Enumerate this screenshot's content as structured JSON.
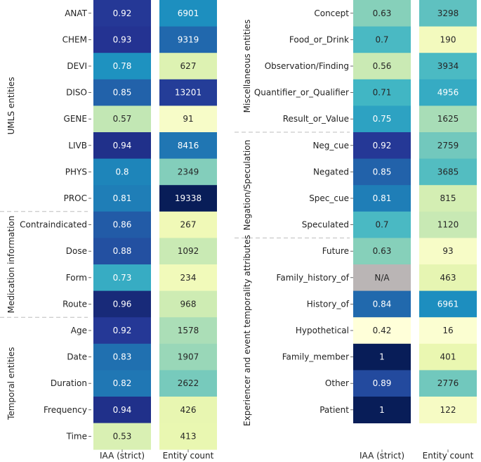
{
  "chart_data": {
    "type": "heatmap",
    "columns": [
      "IAA (strict)",
      "Entity count"
    ],
    "colormap": [
      "#ffffd9",
      "#edf8b1",
      "#c7e9b4",
      "#7fcdbb",
      "#41b6c4",
      "#1d91c0",
      "#225ea8",
      "#253494",
      "#081d58"
    ],
    "na_color": "#bab5b5",
    "panels": [
      {
        "groups": [
          {
            "label": "UMLS entities",
            "rows": [
              {
                "label": "ANAT",
                "iaa": 0.92,
                "iaa_text": "0.92",
                "count": 6901
              },
              {
                "label": "CHEM",
                "iaa": 0.93,
                "iaa_text": "0.93",
                "count": 9319
              },
              {
                "label": "DEVI",
                "iaa": 0.78,
                "iaa_text": "0.78",
                "count": 627
              },
              {
                "label": "DISO",
                "iaa": 0.85,
                "iaa_text": "0.85",
                "count": 13201
              },
              {
                "label": "GENE",
                "iaa": 0.57,
                "iaa_text": "0.57",
                "count": 91
              },
              {
                "label": "LIVB",
                "iaa": 0.94,
                "iaa_text": "0.94",
                "count": 8416
              },
              {
                "label": "PHYS",
                "iaa": 0.8,
                "iaa_text": "0.8",
                "count": 2349
              },
              {
                "label": "PROC",
                "iaa": 0.81,
                "iaa_text": "0.81",
                "count": 19338
              }
            ]
          },
          {
            "label": "Medication information",
            "rows": [
              {
                "label": "Contraindicated",
                "iaa": 0.86,
                "iaa_text": "0.86",
                "count": 267
              },
              {
                "label": "Dose",
                "iaa": 0.88,
                "iaa_text": "0.88",
                "count": 1092
              },
              {
                "label": "Form",
                "iaa": 0.73,
                "iaa_text": "0.73",
                "count": 234
              },
              {
                "label": "Route",
                "iaa": 0.96,
                "iaa_text": "0.96",
                "count": 968
              }
            ]
          },
          {
            "label": "Temporal entities",
            "rows": [
              {
                "label": "Age",
                "iaa": 0.92,
                "iaa_text": "0.92",
                "count": 1578
              },
              {
                "label": "Date",
                "iaa": 0.83,
                "iaa_text": "0.83",
                "count": 1907
              },
              {
                "label": "Duration",
                "iaa": 0.82,
                "iaa_text": "0.82",
                "count": 2622
              },
              {
                "label": "Frequency",
                "iaa": 0.94,
                "iaa_text": "0.94",
                "count": 426
              },
              {
                "label": "Time",
                "iaa": 0.53,
                "iaa_text": "0.53",
                "count": 413
              }
            ]
          }
        ]
      },
      {
        "groups": [
          {
            "label": "Miscellaneous entities",
            "rows": [
              {
                "label": "Concept",
                "iaa": 0.63,
                "iaa_text": "0.63",
                "count": 3298
              },
              {
                "label": "Food_or_Drink",
                "iaa": 0.7,
                "iaa_text": "0.7",
                "count": 190
              },
              {
                "label": "Observation/Finding",
                "iaa": 0.56,
                "iaa_text": "0.56",
                "count": 3934
              },
              {
                "label": "Quantifier_or_Qualifier",
                "iaa": 0.71,
                "iaa_text": "0.71",
                "count": 4956
              },
              {
                "label": "Result_or_Value",
                "iaa": 0.75,
                "iaa_text": "0.75",
                "count": 1625
              }
            ]
          },
          {
            "label": "Negation/Speculation",
            "rows": [
              {
                "label": "Neg_cue",
                "iaa": 0.92,
                "iaa_text": "0.92",
                "count": 2759
              },
              {
                "label": "Negated",
                "iaa": 0.85,
                "iaa_text": "0.85",
                "count": 3685
              },
              {
                "label": "Spec_cue",
                "iaa": 0.81,
                "iaa_text": "0.81",
                "count": 815
              },
              {
                "label": "Speculated",
                "iaa": 0.7,
                "iaa_text": "0.7",
                "count": 1120
              }
            ]
          },
          {
            "label": "Experiencer and event temporality attributes",
            "rows": [
              {
                "label": "Future",
                "iaa": 0.63,
                "iaa_text": "0.63",
                "count": 93
              },
              {
                "label": "Family_history_of",
                "iaa": null,
                "iaa_text": "N/A",
                "count": 463
              },
              {
                "label": "History_of",
                "iaa": 0.84,
                "iaa_text": "0.84",
                "count": 6961
              },
              {
                "label": "Hypothetical",
                "iaa": 0.42,
                "iaa_text": "0.42",
                "count": 16
              },
              {
                "label": "Family_member",
                "iaa": 1,
                "iaa_text": "1",
                "count": 401
              },
              {
                "label": "Other",
                "iaa": 0.89,
                "iaa_text": "0.89",
                "count": 2776
              },
              {
                "label": "Patient",
                "iaa": 1,
                "iaa_text": "1",
                "count": 122
              }
            ]
          }
        ]
      }
    ]
  }
}
